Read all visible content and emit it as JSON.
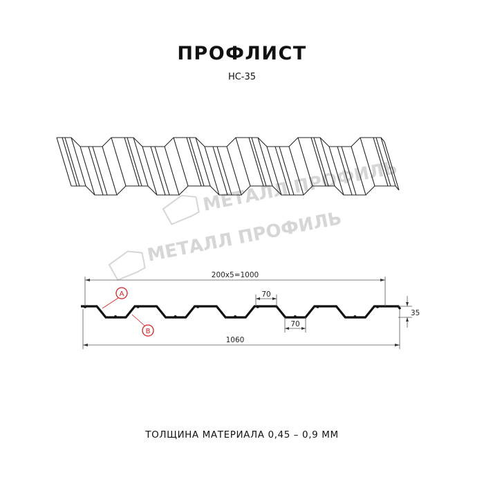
{
  "title": "ПРОФЛИСТ",
  "subtitle": "НС-35",
  "watermark": "МЕТАЛЛ ПРОФИЛЬ",
  "dimensions": {
    "pitch": "200x5=1000",
    "top_width": "70",
    "bottom_width": "70",
    "height": "35",
    "total_width": "1060"
  },
  "markers": {
    "a": "A",
    "b": "B"
  },
  "marker_color": "#d62020",
  "footer": "ТОЛЩИНА МАТЕРИАЛА 0,45 – 0,9 ММ"
}
